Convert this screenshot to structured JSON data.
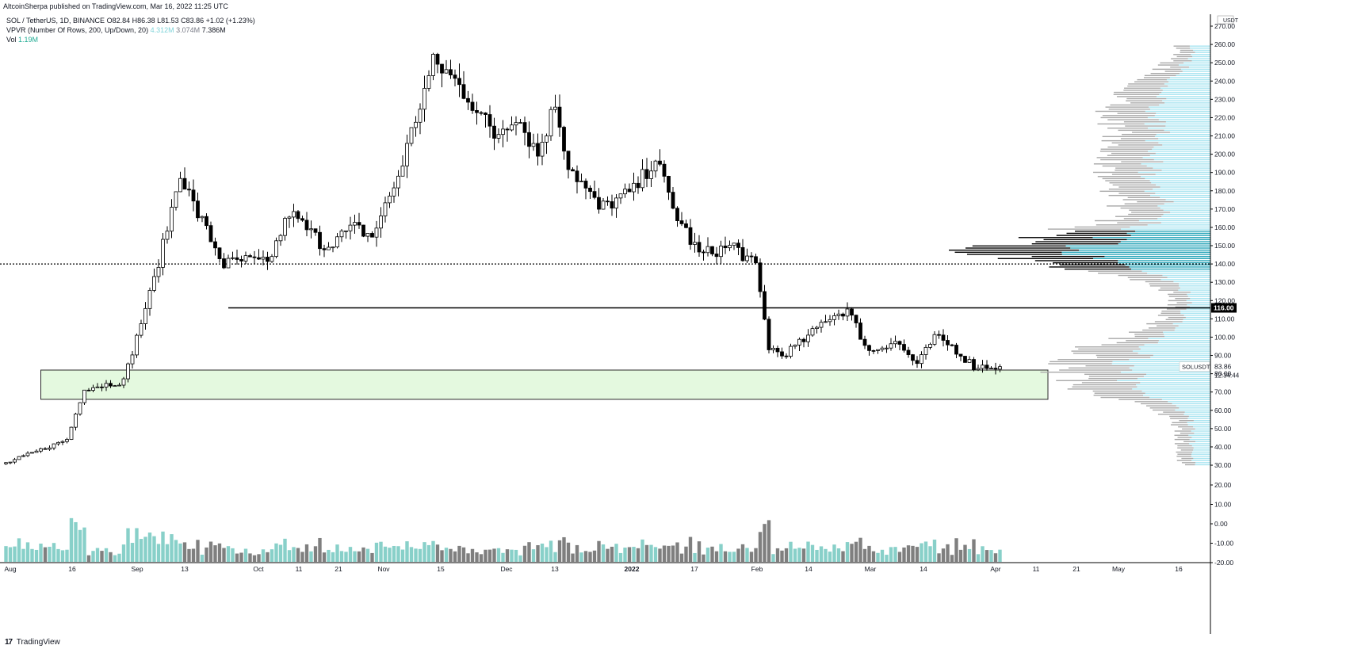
{
  "header": {
    "published": "AltcoinSherpa published on TradingView.com, Mar 16, 2022 11:25 UTC"
  },
  "legend": {
    "symbol_line": "SOL / TetherUS, 1D, BINANCE",
    "ohlc": "O82.84 H86.38 L81.53 C83.86 +1.02 (+1.23%)",
    "vpvr_label": "VPVR (Number Of Rows, 200, Up/Down, 20)",
    "vpvr_up": "4.312M",
    "vpvr_down": "3.074M",
    "vpvr_total": "7.386M",
    "vol_label": "Vol",
    "vol_value": "1.19M"
  },
  "footer": {
    "logo": "17",
    "brand": "TradingView"
  },
  "colors": {
    "up_candle": "#ffffff",
    "down_candle": "#000000",
    "vol_up": "#88d0c9",
    "vol_down": "#7f7f7f",
    "vp_up": "#a8e4f0",
    "vp_down": "#a9a9a9",
    "vp_value_area_up": "#26a4b8",
    "vp_value_area_down": "#000000",
    "zone_fill": "#e4f9df",
    "zone_border": "#2b2b2b"
  },
  "chart_data": {
    "type": "candlestick",
    "symbol": "SOLUSDT",
    "price_axis": {
      "unit": "USDT",
      "ticks": [
        "270.00",
        "260.00",
        "250.00",
        "240.00",
        "230.00",
        "220.00",
        "210.00",
        "200.00",
        "190.00",
        "180.00",
        "170.00",
        "160.00",
        "150.00",
        "140.00",
        "130.00",
        "120.00",
        "110.00",
        "100.00",
        "90.00",
        "80.00",
        "70.00",
        "60.00",
        "50.00",
        "40.00",
        "30.00"
      ],
      "range": [
        25,
        273
      ]
    },
    "volume_axis": {
      "ticks": [
        "20.00",
        "10.00",
        "0.00",
        "-10.00",
        "-20.00"
      ]
    },
    "time_axis": {
      "labels": [
        "Aug",
        "16",
        "Sep",
        "13",
        "Oct",
        "11",
        "21",
        "Nov",
        "15",
        "Dec",
        "13",
        "2022",
        "17",
        "Feb",
        "14",
        "Mar",
        "14",
        "Apr",
        "11",
        "21",
        "May",
        "16"
      ]
    },
    "current_price_label": "83.86",
    "countdown": "12:34:44",
    "symbol_tag": "SOLUSDT",
    "level_label": "116.00",
    "horizontal_levels": [
      {
        "price": 116,
        "style": "solid",
        "from_date": "2021-09-20"
      },
      {
        "price": 140,
        "style": "dotted",
        "from_date": "start"
      }
    ],
    "zone": {
      "from_date": "2021-08-08",
      "to_date": "2022-03-27",
      "low": 66,
      "high": 82
    },
    "anchor_points": [
      [
        "2021-07-31",
        31
      ],
      [
        "2021-08-14",
        44
      ],
      [
        "2021-08-18",
        72
      ],
      [
        "2021-08-27",
        76
      ],
      [
        "2021-09-04",
        140
      ],
      [
        "2021-09-09",
        190
      ],
      [
        "2021-09-12",
        172
      ],
      [
        "2021-09-19",
        140
      ],
      [
        "2021-09-24",
        142
      ],
      [
        "2021-09-29",
        140
      ],
      [
        "2021-10-04",
        168
      ],
      [
        "2021-10-12",
        150
      ],
      [
        "2021-10-19",
        160
      ],
      [
        "2021-10-23",
        155
      ],
      [
        "2021-10-29",
        188
      ],
      [
        "2021-11-01",
        212
      ],
      [
        "2021-11-06",
        250
      ],
      [
        "2021-11-09",
        245
      ],
      [
        "2021-11-14",
        232
      ],
      [
        "2021-11-20",
        210
      ],
      [
        "2021-11-25",
        222
      ],
      [
        "2021-11-30",
        200
      ],
      [
        "2021-12-04",
        228
      ],
      [
        "2021-12-07",
        195
      ],
      [
        "2021-12-14",
        170
      ],
      [
        "2021-12-18",
        175
      ],
      [
        "2021-12-22",
        180
      ],
      [
        "2021-12-27",
        198
      ],
      [
        "2021-12-31",
        170
      ],
      [
        "2022-01-06",
        145
      ],
      [
        "2022-01-14",
        150
      ],
      [
        "2022-01-19",
        138
      ],
      [
        "2022-01-22",
        95
      ],
      [
        "2022-01-25",
        90
      ],
      [
        "2022-01-31",
        100
      ],
      [
        "2022-02-04",
        110
      ],
      [
        "2022-02-09",
        115
      ],
      [
        "2022-02-14",
        92
      ],
      [
        "2022-02-20",
        98
      ],
      [
        "2022-02-25",
        85
      ],
      [
        "2022-03-01",
        100
      ],
      [
        "2022-03-05",
        95
      ],
      [
        "2022-03-10",
        84
      ],
      [
        "2022-03-16",
        84
      ]
    ],
    "volume_profile_note": "Visible range volume profile, 200 rows, up/down split; highest-volume node near 140-155"
  }
}
